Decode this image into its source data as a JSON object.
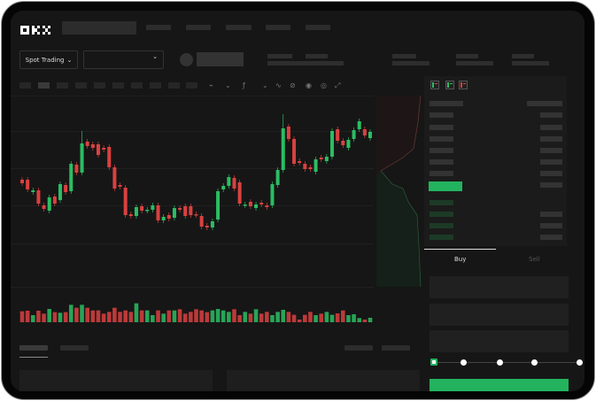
{
  "header": {
    "logo": "OKX",
    "nav_items": 5
  },
  "market": {
    "mode_label": "Spot Trading",
    "mode_icon": "chevron-down-icon",
    "pair_icon": "chevron-down-icon"
  },
  "toolbar": {
    "icons": [
      "candles-icon",
      "indicator-icon",
      "fx-icon",
      "line-icon",
      "pencil-icon",
      "camera-icon",
      "target-icon",
      "fullscreen-icon"
    ]
  },
  "orderbook": {
    "view_icons": [
      "both-sides-icon",
      "bids-icon",
      "asks-icon"
    ]
  },
  "order_form": {
    "tabs": [
      {
        "label": "Buy",
        "active": true
      },
      {
        "label": "Sell",
        "active": false
      }
    ],
    "slider_percent": 0,
    "slider_steps": [
      0,
      25,
      50,
      75,
      100
    ]
  },
  "colors": {
    "up": "#2bbd63",
    "down": "#d9413f",
    "accent": "#23b35f",
    "background": "#161616"
  },
  "chart_data": {
    "type": "candlestick",
    "candles": [
      [
        97,
        93
      ],
      [
        97,
        86
      ],
      [
        83,
        85
      ],
      [
        85,
        70
      ],
      [
        68,
        64
      ],
      [
        62,
        77
      ],
      [
        78,
        70
      ],
      [
        74,
        92
      ],
      [
        91,
        83
      ],
      [
        84,
        115
      ],
      [
        114,
        105
      ],
      [
        105,
        138,
        152
      ],
      [
        140,
        135
      ],
      [
        137,
        133
      ],
      [
        137,
        125
      ],
      [
        133,
        131
      ],
      [
        134,
        111
      ],
      [
        111,
        87
      ],
      [
        91,
        89
      ],
      [
        88,
        57
      ],
      [
        58,
        56
      ],
      [
        56,
        66
      ],
      [
        67,
        62
      ],
      [
        62,
        63
      ],
      [
        63,
        68
      ],
      [
        68,
        51
      ],
      [
        51,
        55
      ],
      [
        57,
        53
      ],
      [
        54,
        65
      ],
      [
        65,
        63
      ],
      [
        67,
        56
      ],
      [
        67,
        57
      ],
      [
        58,
        57
      ],
      [
        56,
        44
      ],
      [
        45,
        43
      ],
      [
        43,
        50
      ],
      [
        52,
        84
      ],
      [
        86,
        90
      ],
      [
        90,
        100
      ],
      [
        99,
        87
      ],
      [
        94,
        70
      ],
      [
        68,
        69
      ],
      [
        72,
        67
      ],
      [
        65,
        69
      ],
      [
        71,
        69
      ],
      [
        68,
        66
      ],
      [
        68,
        92
      ],
      [
        91,
        108
      ],
      [
        108,
        155,
        171
      ],
      [
        157,
        143
      ],
      [
        143,
        115
      ],
      [
        118,
        116
      ],
      [
        115,
        109
      ],
      [
        111,
        109
      ],
      [
        106,
        120
      ],
      [
        122,
        120
      ],
      [
        118,
        123
      ],
      [
        123,
        152
      ],
      [
        154,
        141
      ],
      [
        141,
        136
      ],
      [
        133,
        142
      ],
      [
        143,
        153
      ],
      [
        154,
        163
      ],
      [
        154,
        147
      ],
      [
        144,
        151
      ]
    ],
    "volumes": [
      37,
      39,
      24,
      39,
      29,
      45,
      34,
      32,
      34,
      59,
      49,
      59,
      49,
      40,
      40,
      29,
      35,
      49,
      35,
      40,
      35,
      64,
      40,
      40,
      24,
      40,
      29,
      40,
      40,
      44,
      29,
      35,
      44,
      40,
      34,
      40,
      45,
      40,
      35,
      44,
      24,
      35,
      29,
      44,
      29,
      35,
      24,
      35,
      42,
      35,
      25,
      9,
      25,
      35,
      24,
      29,
      35,
      25,
      30,
      40,
      24,
      27,
      14,
      9,
      15
    ]
  }
}
